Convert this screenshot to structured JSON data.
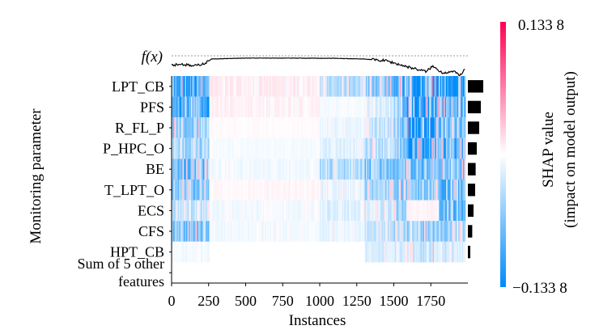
{
  "chart_data": {
    "type": "heatmap",
    "xlabel": "Instances",
    "ylabel": "Monitoring parameter",
    "fx_label": "f(x)",
    "x_ticks": [
      "0",
      "250",
      "500",
      "750",
      "1000",
      "1250",
      "1500",
      "1750"
    ],
    "x_tick_values": [
      0,
      250,
      500,
      750,
      1000,
      1250,
      1500,
      1750
    ],
    "xlim": [
      0,
      2000
    ],
    "rows": [
      "LPT_CB",
      "PFS",
      "R_FL_P",
      "P_HPC_O",
      "BE",
      "T_LPT_O",
      "ECS",
      "CFS",
      "HPT_CB",
      "Sum of 5 other features"
    ],
    "row_label_lines": [
      [
        "LPT_CB"
      ],
      [
        "PFS"
      ],
      [
        "R_FL_P"
      ],
      [
        "P_HPC_O"
      ],
      [
        "BE"
      ],
      [
        "T_LPT_O"
      ],
      [
        "ECS"
      ],
      [
        "CFS"
      ],
      [
        "HPT_CB"
      ],
      [
        "Sum of 5 other",
        "features"
      ]
    ],
    "mean_abs_shap": [
      0.95,
      0.8,
      0.7,
      0.55,
      0.48,
      0.45,
      0.35,
      0.27,
      0.15,
      0.0
    ],
    "regions": [
      {
        "start": 0,
        "end": 250,
        "intensity": [
          -0.7,
          -0.7,
          -0.45,
          -0.35,
          -0.55,
          -0.5,
          -0.25,
          -0.5,
          -0.05,
          0
        ]
      },
      {
        "start": 250,
        "end": 1000,
        "intensity": [
          0.08,
          0.06,
          0.02,
          -0.04,
          -0.06,
          0.04,
          -0.06,
          -0.06,
          0,
          0
        ]
      },
      {
        "start": 1000,
        "end": 1300,
        "intensity": [
          -0.28,
          -0.04,
          -0.08,
          -0.12,
          -0.32,
          -0.1,
          -0.15,
          -0.1,
          0,
          0
        ]
      },
      {
        "start": 1300,
        "end": 1500,
        "intensity": [
          -0.45,
          -0.15,
          -0.25,
          -0.3,
          -0.5,
          -0.35,
          -0.2,
          -0.25,
          -0.15,
          0
        ]
      },
      {
        "start": 1500,
        "end": 1590,
        "intensity": [
          -0.6,
          -0.55,
          -0.55,
          -0.45,
          -0.45,
          -0.45,
          -0.35,
          -0.3,
          -0.2,
          0
        ]
      },
      {
        "start": 1590,
        "end": 1800,
        "intensity": [
          -0.85,
          -0.85,
          -0.9,
          -0.75,
          -0.55,
          -0.55,
          0.05,
          -0.4,
          -0.25,
          0
        ]
      },
      {
        "start": 1800,
        "end": 1980,
        "intensity": [
          -0.75,
          -0.6,
          -0.65,
          -0.65,
          -0.45,
          -0.6,
          -0.55,
          -0.4,
          -0.2,
          0
        ]
      }
    ],
    "fx_profile": [
      [
        0,
        0.5
      ],
      [
        60,
        0.55
      ],
      [
        150,
        0.45
      ],
      [
        230,
        0.6
      ],
      [
        270,
        0.78
      ],
      [
        500,
        0.82
      ],
      [
        800,
        0.82
      ],
      [
        1100,
        0.81
      ],
      [
        1300,
        0.78
      ],
      [
        1450,
        0.7
      ],
      [
        1550,
        0.5
      ],
      [
        1650,
        0.32
      ],
      [
        1720,
        0.2
      ],
      [
        1760,
        0.45
      ],
      [
        1830,
        0.15
      ],
      [
        1900,
        0.2
      ],
      [
        1950,
        0.05
      ],
      [
        1980,
        0.3
      ]
    ],
    "colorbar": {
      "label_line1": "SHAP value",
      "label_line2": "(impact on model output)",
      "max_label": "0.133 8",
      "min_label": "−0.133 8",
      "max": 0.1338,
      "min": -0.1338,
      "positive_color": "#ff0052",
      "negative_color": "#008bfb"
    }
  }
}
